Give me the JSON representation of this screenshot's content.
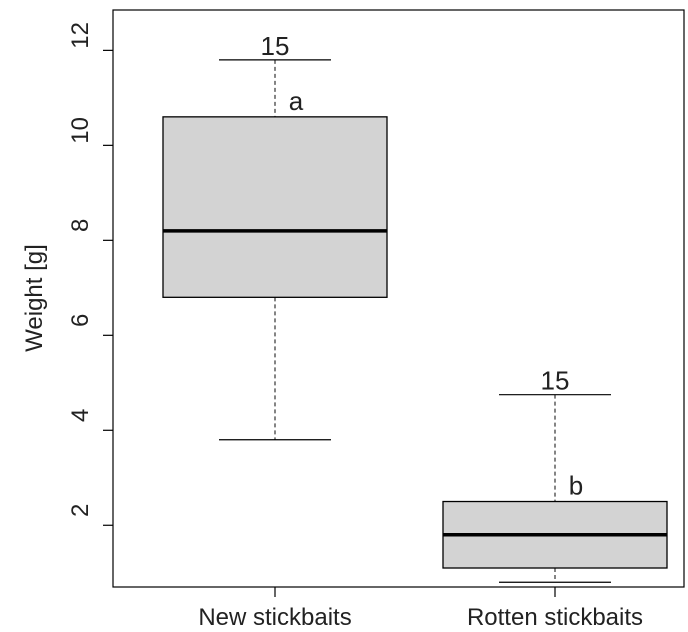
{
  "chart_data": {
    "type": "box",
    "ylabel": "Weight [g]",
    "ylim": [
      0.7,
      12.85
    ],
    "yticks": [
      2,
      4,
      6,
      8,
      10,
      12
    ],
    "categories": [
      "New stickbaits",
      "Rotten stickbaits"
    ],
    "boxes": [
      {
        "category": "New stickbaits",
        "min": 3.8,
        "q1": 6.8,
        "median": 8.2,
        "q3": 10.6,
        "max": 11.8,
        "n_label": "15",
        "group_label": "a"
      },
      {
        "category": "Rotten stickbaits",
        "min": 0.8,
        "q1": 1.1,
        "median": 1.8,
        "q3": 2.5,
        "max": 4.75,
        "n_label": "15",
        "group_label": "b"
      }
    ],
    "grid": false,
    "box_fill": "#d3d3d3"
  }
}
